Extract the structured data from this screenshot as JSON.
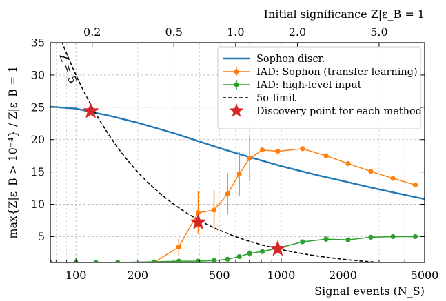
{
  "chart_data": {
    "type": "line",
    "xlabel": "Signal events (N_S)",
    "ylabel": "max{Z|ε_B > 10⁻⁴} / Z|ε_B = 1",
    "x2label": "Initial significance Z|ε_B = 1",
    "xscale": "log",
    "xlim": [
      75,
      5000
    ],
    "ylim": [
      1,
      35
    ],
    "x_ticks": [
      100,
      200,
      500,
      1000,
      2000,
      5000
    ],
    "x_tick_labels": [
      "100",
      "200",
      "500",
      "1000",
      "2000",
      "5000"
    ],
    "y_ticks": [
      5,
      10,
      15,
      20,
      25,
      30,
      35
    ],
    "y_tick_labels": [
      "5",
      "10",
      "15",
      "20",
      "25",
      "30",
      "35"
    ],
    "x2_ticks": [
      0.2,
      0.5,
      1.0,
      2.0,
      5.0
    ],
    "x2_tick_labels": [
      "0.2",
      "0.5",
      "1.0",
      "2.0",
      "5.0"
    ],
    "x2_per_x": 0.001667,
    "grid": true,
    "legend_position": "top-right",
    "annotation": "Z = 5",
    "series": [
      {
        "name": "Sophon discr.",
        "color": "#1f77b4",
        "style": "solid",
        "points": [
          [
            75,
            25.1
          ],
          [
            100,
            24.8
          ],
          [
            150,
            23.6
          ],
          [
            200,
            22.6
          ],
          [
            300,
            21.0
          ],
          [
            500,
            18.7
          ],
          [
            700,
            17.3
          ],
          [
            1000,
            15.9
          ],
          [
            1500,
            14.5
          ],
          [
            2000,
            13.6
          ],
          [
            3000,
            12.3
          ],
          [
            5000,
            10.8
          ]
        ]
      },
      {
        "name": "IAD: Sophon (transfer learning)",
        "color": "#ff7f0e",
        "style": "errorbar",
        "points": [
          [
            75,
            1.0
          ],
          [
            100,
            1.0
          ],
          [
            125,
            1.0
          ],
          [
            160,
            1.0
          ],
          [
            240,
            1.0
          ],
          [
            317,
            3.4
          ],
          [
            394,
            8.7
          ],
          [
            471,
            9.1
          ],
          [
            548,
            11.6
          ],
          [
            625,
            14.7
          ],
          [
            702,
            17.1
          ],
          [
            809,
            18.4
          ],
          [
            962,
            18.2
          ],
          [
            1270,
            18.6
          ],
          [
            1655,
            17.5
          ],
          [
            2117,
            16.3
          ],
          [
            2733,
            15.1
          ],
          [
            3503,
            14.0
          ],
          [
            4503,
            13.0
          ]
        ],
        "errors": [
          0,
          0,
          0,
          0,
          0,
          1.4,
          3.3,
          3.1,
          3.2,
          3.4,
          3.5,
          0.3,
          0.4,
          0.3,
          0.3,
          0.3,
          0.3,
          0.3,
          0.3
        ]
      },
      {
        "name": "IAD: high-level input",
        "color": "#2ca02c",
        "style": "errorbar",
        "points": [
          [
            75,
            1.0
          ],
          [
            100,
            1.0
          ],
          [
            125,
            1.0
          ],
          [
            160,
            1.0
          ],
          [
            240,
            1.1
          ],
          [
            317,
            1.2
          ],
          [
            394,
            1.2
          ],
          [
            471,
            1.3
          ],
          [
            548,
            1.5
          ],
          [
            625,
            1.9
          ],
          [
            702,
            2.4
          ],
          [
            809,
            2.7
          ],
          [
            962,
            3.2
          ],
          [
            1270,
            4.2
          ],
          [
            1655,
            4.6
          ],
          [
            2117,
            4.5
          ],
          [
            2733,
            4.9
          ],
          [
            3503,
            5.0
          ],
          [
            4503,
            5.0
          ]
        ],
        "errors": [
          0,
          0,
          0,
          0,
          0.1,
          0.1,
          0.1,
          0.2,
          0.2,
          0.2,
          0.5,
          0.4,
          0.4,
          0.3,
          0.5,
          0.3,
          0.3,
          0.3,
          0.3
        ]
      },
      {
        "name": "5σ limit",
        "color": "#000000",
        "style": "dashed",
        "formula": "y = 5 / (x / 600)"
      },
      {
        "name": "Discovery point for each method",
        "color": "#d62728",
        "style": "star",
        "points": [
          [
            118,
            24.4
          ],
          [
            394,
            7.2
          ],
          [
            962,
            3.1
          ]
        ]
      }
    ]
  }
}
